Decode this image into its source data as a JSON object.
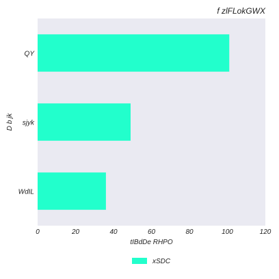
{
  "chart_data": {
    "type": "bar",
    "orientation": "horizontal",
    "title": "f zlFLokGWX",
    "xlabel": "tIBdDe RHPO",
    "ylabel": "D b jk",
    "categories": [
      "QY",
      "sjyk",
      "WdIL"
    ],
    "series": [
      {
        "name": "xSDC",
        "values": [
          101,
          49,
          36
        ],
        "color": "#22ffcc"
      }
    ],
    "xlim": [
      0,
      120
    ],
    "xticks": [
      0,
      20,
      40,
      60,
      80,
      100,
      120
    ],
    "grid": false,
    "legend_position": "bottom-center",
    "background_color": "#eaeaf2"
  }
}
